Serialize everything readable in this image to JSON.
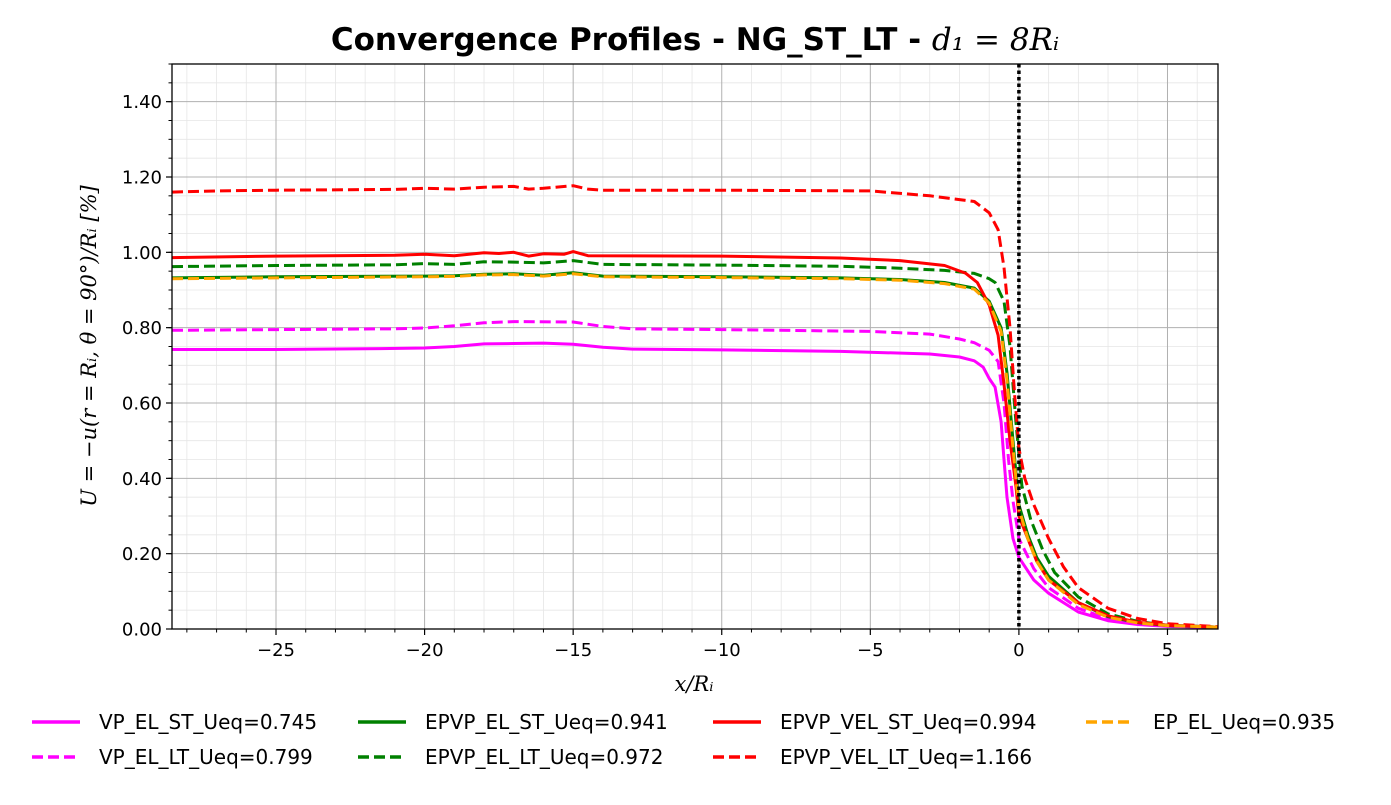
{
  "chart_data": {
    "type": "line",
    "title": "Convergence Profiles - NG_ST_LT - ",
    "title_math": "d₁ = 8Rᵢ",
    "xlabel": "x/Rᵢ",
    "ylabel": "U = −u(r = Rᵢ, θ = 90°)/Rᵢ [%]",
    "xlim": [
      -28.5,
      6.7
    ],
    "ylim": [
      0.0,
      1.5
    ],
    "xticks": [
      -25,
      -20,
      -15,
      -10,
      -5,
      0,
      5
    ],
    "xtick_labels": [
      "−25",
      "−20",
      "−15",
      "−10",
      "−5",
      "0",
      "5"
    ],
    "yticks": [
      0.0,
      0.2,
      0.4,
      0.6,
      0.8,
      1.0,
      1.2,
      1.4
    ],
    "ytick_labels": [
      "0.00",
      "0.20",
      "0.40",
      "0.60",
      "0.80",
      "1.00",
      "1.20",
      "1.40"
    ],
    "grid": true,
    "minor_grid": true,
    "vertical_line": {
      "x": 0,
      "style": "dotted",
      "color": "#000000"
    },
    "legend_position": "bottom",
    "series": [
      {
        "name": "VP_EL_ST_Ueq=0.745",
        "color": "#ff00ff",
        "dash": "solid",
        "points": [
          [
            -28.5,
            0.742
          ],
          [
            -25,
            0.742
          ],
          [
            -22,
            0.744
          ],
          [
            -20,
            0.746
          ],
          [
            -19,
            0.75
          ],
          [
            -18,
            0.757
          ],
          [
            -17,
            0.758
          ],
          [
            -16,
            0.759
          ],
          [
            -15,
            0.756
          ],
          [
            -14,
            0.748
          ],
          [
            -13,
            0.743
          ],
          [
            -10,
            0.741
          ],
          [
            -6,
            0.737
          ],
          [
            -3,
            0.73
          ],
          [
            -2,
            0.722
          ],
          [
            -1.5,
            0.712
          ],
          [
            -1.2,
            0.695
          ],
          [
            -1.0,
            0.665
          ],
          [
            -0.8,
            0.642
          ],
          [
            -0.6,
            0.55
          ],
          [
            -0.5,
            0.45
          ],
          [
            -0.4,
            0.35
          ],
          [
            -0.2,
            0.24
          ],
          [
            0,
            0.19
          ],
          [
            0.5,
            0.13
          ],
          [
            1,
            0.095
          ],
          [
            2,
            0.045
          ],
          [
            3,
            0.022
          ],
          [
            4,
            0.012
          ],
          [
            5,
            0.007
          ],
          [
            6.7,
            0.004
          ]
        ]
      },
      {
        "name": "VP_EL_LT_Ueq=0.799",
        "color": "#ff00ff",
        "dash": "dashed",
        "points": [
          [
            -28.5,
            0.793
          ],
          [
            -25,
            0.795
          ],
          [
            -21,
            0.797
          ],
          [
            -20,
            0.799
          ],
          [
            -19,
            0.805
          ],
          [
            -18,
            0.813
          ],
          [
            -17,
            0.816
          ],
          [
            -15,
            0.815
          ],
          [
            -14,
            0.803
          ],
          [
            -13,
            0.797
          ],
          [
            -10,
            0.795
          ],
          [
            -5,
            0.79
          ],
          [
            -3,
            0.783
          ],
          [
            -2,
            0.77
          ],
          [
            -1.5,
            0.76
          ],
          [
            -1.0,
            0.74
          ],
          [
            -0.7,
            0.71
          ],
          [
            -0.5,
            0.6
          ],
          [
            -0.35,
            0.45
          ],
          [
            -0.2,
            0.34
          ],
          [
            0,
            0.24
          ],
          [
            0.5,
            0.16
          ],
          [
            1,
            0.11
          ],
          [
            2,
            0.055
          ],
          [
            3,
            0.027
          ],
          [
            4,
            0.014
          ],
          [
            5,
            0.008
          ],
          [
            6.7,
            0.004
          ]
        ]
      },
      {
        "name": "EPVP_EL_ST_Ueq=0.941",
        "color": "#008000",
        "dash": "solid",
        "points": [
          [
            -28.5,
            0.932
          ],
          [
            -25,
            0.935
          ],
          [
            -20,
            0.937
          ],
          [
            -19,
            0.938
          ],
          [
            -18,
            0.942
          ],
          [
            -17,
            0.943
          ],
          [
            -16,
            0.939
          ],
          [
            -15,
            0.946
          ],
          [
            -14,
            0.937
          ],
          [
            -10,
            0.935
          ],
          [
            -6,
            0.932
          ],
          [
            -4,
            0.928
          ],
          [
            -2.5,
            0.92
          ],
          [
            -1.5,
            0.905
          ],
          [
            -1.0,
            0.87
          ],
          [
            -0.6,
            0.8
          ],
          [
            -0.4,
            0.68
          ],
          [
            -0.2,
            0.5
          ],
          [
            0,
            0.33
          ],
          [
            0.3,
            0.25
          ],
          [
            0.6,
            0.19
          ],
          [
            1,
            0.14
          ],
          [
            2,
            0.07
          ],
          [
            3,
            0.033
          ],
          [
            4,
            0.017
          ],
          [
            5,
            0.009
          ],
          [
            6.7,
            0.005
          ]
        ]
      },
      {
        "name": "EPVP_EL_LT_Ueq=0.972",
        "color": "#008000",
        "dash": "dashed",
        "points": [
          [
            -28.5,
            0.962
          ],
          [
            -25,
            0.965
          ],
          [
            -21,
            0.967
          ],
          [
            -20,
            0.97
          ],
          [
            -19,
            0.968
          ],
          [
            -18,
            0.975
          ],
          [
            -17,
            0.974
          ],
          [
            -16,
            0.972
          ],
          [
            -15,
            0.978
          ],
          [
            -14,
            0.968
          ],
          [
            -10,
            0.966
          ],
          [
            -6,
            0.963
          ],
          [
            -4,
            0.958
          ],
          [
            -2.5,
            0.952
          ],
          [
            -1.5,
            0.944
          ],
          [
            -1.0,
            0.93
          ],
          [
            -0.8,
            0.92
          ],
          [
            -0.5,
            0.87
          ],
          [
            -0.3,
            0.75
          ],
          [
            -0.1,
            0.55
          ],
          [
            0.1,
            0.38
          ],
          [
            0.4,
            0.29
          ],
          [
            0.8,
            0.21
          ],
          [
            1.2,
            0.15
          ],
          [
            2,
            0.085
          ],
          [
            3,
            0.04
          ],
          [
            4,
            0.02
          ],
          [
            5,
            0.01
          ],
          [
            6.7,
            0.005
          ]
        ]
      },
      {
        "name": "EPVP_VEL_ST_Ueq=0.994",
        "color": "#ff0000",
        "dash": "solid",
        "points": [
          [
            -28.5,
            0.986
          ],
          [
            -25,
            0.99
          ],
          [
            -21,
            0.992
          ],
          [
            -20,
            0.995
          ],
          [
            -19,
            0.991
          ],
          [
            -18,
            0.999
          ],
          [
            -17.5,
            0.997
          ],
          [
            -17,
            1.0
          ],
          [
            -16.5,
            0.99
          ],
          [
            -16,
            0.996
          ],
          [
            -15.3,
            0.995
          ],
          [
            -15,
            1.002
          ],
          [
            -14.5,
            0.991
          ],
          [
            -10,
            0.99
          ],
          [
            -6,
            0.985
          ],
          [
            -4,
            0.978
          ],
          [
            -2.5,
            0.965
          ],
          [
            -1.8,
            0.945
          ],
          [
            -1.4,
            0.92
          ],
          [
            -1.0,
            0.86
          ],
          [
            -0.7,
            0.78
          ],
          [
            -0.5,
            0.65
          ],
          [
            -0.3,
            0.5
          ],
          [
            -0.1,
            0.38
          ],
          [
            0,
            0.3
          ],
          [
            0.3,
            0.24
          ],
          [
            0.6,
            0.18
          ],
          [
            1,
            0.13
          ],
          [
            2,
            0.07
          ],
          [
            3,
            0.035
          ],
          [
            4,
            0.018
          ],
          [
            5,
            0.01
          ],
          [
            6.7,
            0.005
          ]
        ]
      },
      {
        "name": "EPVP_VEL_LT_Ueq=1.166",
        "color": "#ff0000",
        "dash": "dashed",
        "points": [
          [
            -28.5,
            1.16
          ],
          [
            -27,
            1.163
          ],
          [
            -25,
            1.165
          ],
          [
            -21,
            1.167
          ],
          [
            -20,
            1.17
          ],
          [
            -19,
            1.168
          ],
          [
            -18,
            1.173
          ],
          [
            -17,
            1.175
          ],
          [
            -16.5,
            1.168
          ],
          [
            -16,
            1.17
          ],
          [
            -15,
            1.177
          ],
          [
            -14.5,
            1.168
          ],
          [
            -14,
            1.165
          ],
          [
            -10,
            1.165
          ],
          [
            -5,
            1.163
          ],
          [
            -3,
            1.15
          ],
          [
            -2,
            1.14
          ],
          [
            -1.5,
            1.135
          ],
          [
            -1.0,
            1.105
          ],
          [
            -0.7,
            1.06
          ],
          [
            -0.5,
            0.96
          ],
          [
            -0.3,
            0.8
          ],
          [
            -0.15,
            0.63
          ],
          [
            0,
            0.48
          ],
          [
            0.2,
            0.4
          ],
          [
            0.5,
            0.33
          ],
          [
            1,
            0.24
          ],
          [
            1.5,
            0.165
          ],
          [
            2,
            0.11
          ],
          [
            3,
            0.055
          ],
          [
            4,
            0.028
          ],
          [
            5,
            0.014
          ],
          [
            6.7,
            0.006
          ]
        ]
      },
      {
        "name": "EP_EL_Ueq=0.935",
        "color": "#ffa500",
        "dash": "dashed",
        "points": [
          [
            -28.5,
            0.93
          ],
          [
            -25,
            0.932
          ],
          [
            -20,
            0.935
          ],
          [
            -19,
            0.936
          ],
          [
            -18,
            0.94
          ],
          [
            -17,
            0.941
          ],
          [
            -16,
            0.937
          ],
          [
            -15,
            0.943
          ],
          [
            -14,
            0.935
          ],
          [
            -10,
            0.933
          ],
          [
            -6,
            0.93
          ],
          [
            -4,
            0.926
          ],
          [
            -2.5,
            0.917
          ],
          [
            -1.5,
            0.902
          ],
          [
            -1.0,
            0.865
          ],
          [
            -0.6,
            0.79
          ],
          [
            -0.4,
            0.66
          ],
          [
            -0.2,
            0.48
          ],
          [
            0,
            0.32
          ],
          [
            0.3,
            0.24
          ],
          [
            0.6,
            0.18
          ],
          [
            1,
            0.13
          ],
          [
            2,
            0.065
          ],
          [
            3,
            0.031
          ],
          [
            4,
            0.016
          ],
          [
            5,
            0.009
          ],
          [
            6.7,
            0.005
          ]
        ]
      }
    ]
  }
}
